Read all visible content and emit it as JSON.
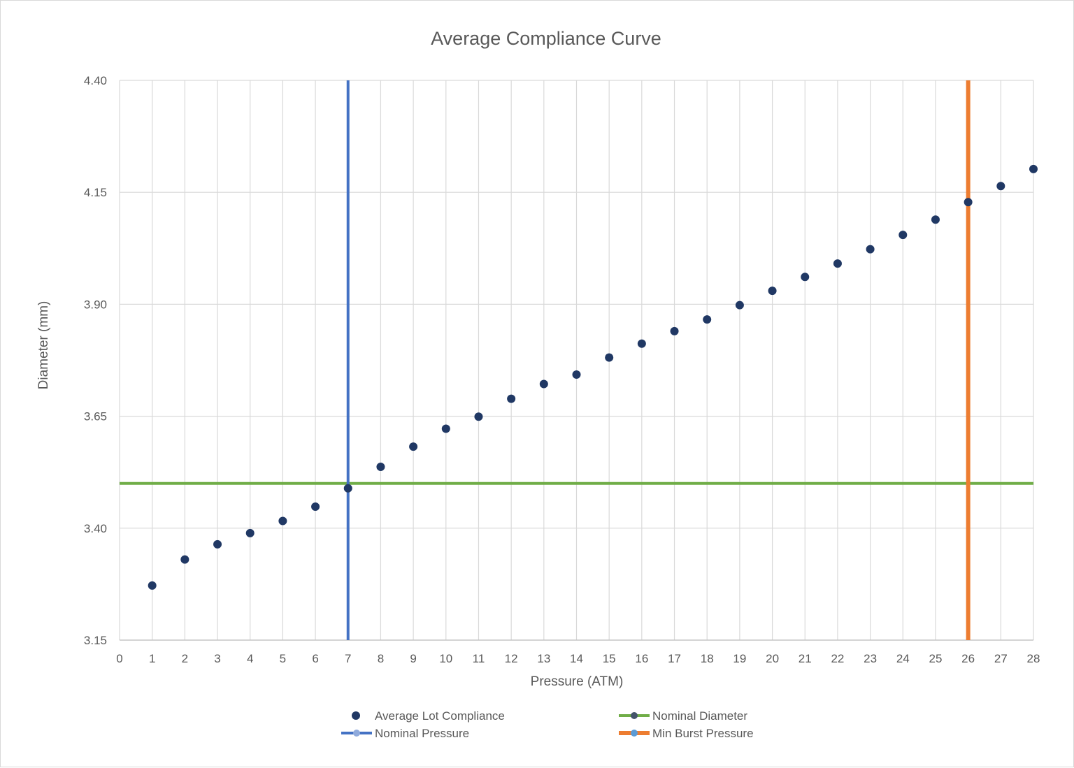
{
  "chart_data": {
    "type": "scatter",
    "title": "Average Compliance Curve",
    "xlabel": "Pressure (ATM)",
    "ylabel": "Diameter (mm)",
    "xlim": [
      0,
      28
    ],
    "ylim": [
      3.15,
      4.4
    ],
    "x_ticks": [
      "0",
      "1",
      "2",
      "3",
      "4",
      "5",
      "6",
      "7",
      "8",
      "9",
      "10",
      "11",
      "12",
      "13",
      "14",
      "15",
      "16",
      "17",
      "18",
      "19",
      "20",
      "21",
      "22",
      "23",
      "24",
      "25",
      "26",
      "27",
      "28"
    ],
    "y_ticks": [
      "3.15",
      "3.40",
      "3.65",
      "3.90",
      "4.15",
      "4.40"
    ],
    "grid": true,
    "legend_position": "bottom",
    "series": [
      {
        "name": "Average Lot Compliance",
        "kind": "points",
        "color": "#203864",
        "x": [
          1,
          2,
          3,
          4,
          5,
          6,
          7,
          8,
          9,
          10,
          11,
          12,
          13,
          14,
          15,
          16,
          17,
          18,
          19,
          20,
          21,
          22,
          23,
          24,
          25,
          26,
          27,
          28
        ],
        "y": [
          3.272,
          3.33,
          3.364,
          3.389,
          3.416,
          3.448,
          3.489,
          3.537,
          3.582,
          3.622,
          3.649,
          3.689,
          3.722,
          3.743,
          3.781,
          3.812,
          3.84,
          3.866,
          3.898,
          3.93,
          3.961,
          3.991,
          4.023,
          4.055,
          4.089,
          4.128,
          4.164,
          4.202
        ]
      },
      {
        "name": "Nominal Diameter",
        "kind": "hline",
        "color": "#70ad47",
        "marker_color": "#44546a",
        "y": 3.5
      },
      {
        "name": "Nominal Pressure",
        "kind": "vline",
        "color": "#4472c4",
        "marker_color": "#8faadc",
        "x": 7
      },
      {
        "name": "Min Burst Pressure",
        "kind": "vline",
        "color": "#ed7d31",
        "marker_color": "#5b9bd5",
        "x": 26
      }
    ]
  }
}
